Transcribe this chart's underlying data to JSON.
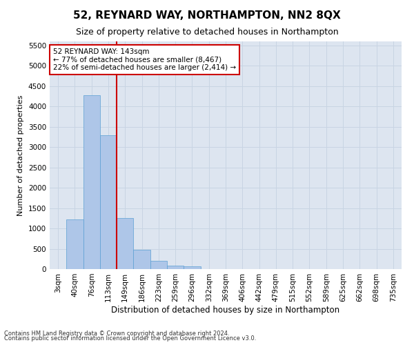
{
  "title": "52, REYNARD WAY, NORTHAMPTON, NN2 8QX",
  "subtitle": "Size of property relative to detached houses in Northampton",
  "xlabel": "Distribution of detached houses by size in Northampton",
  "ylabel": "Number of detached properties",
  "footnote1": "Contains HM Land Registry data © Crown copyright and database right 2024.",
  "footnote2": "Contains public sector information licensed under the Open Government Licence v3.0.",
  "categories": [
    "3sqm",
    "40sqm",
    "76sqm",
    "113sqm",
    "149sqm",
    "186sqm",
    "223sqm",
    "259sqm",
    "296sqm",
    "332sqm",
    "369sqm",
    "406sqm",
    "442sqm",
    "479sqm",
    "515sqm",
    "552sqm",
    "589sqm",
    "625sqm",
    "662sqm",
    "698sqm",
    "735sqm"
  ],
  "bar_values": [
    0,
    1230,
    4280,
    3300,
    1260,
    470,
    200,
    90,
    60,
    0,
    0,
    0,
    0,
    0,
    0,
    0,
    0,
    0,
    0,
    0,
    0
  ],
  "bar_color": "#aec6e8",
  "bar_edgecolor": "#5a9fd4",
  "vline_color": "#cc0000",
  "vline_bin_index": 3,
  "annotation_text": "52 REYNARD WAY: 143sqm\n← 77% of detached houses are smaller (8,467)\n22% of semi-detached houses are larger (2,414) →",
  "annotation_box_edgecolor": "#cc0000",
  "annotation_box_facecolor": "#ffffff",
  "ylim": [
    0,
    5600
  ],
  "yticks": [
    0,
    500,
    1000,
    1500,
    2000,
    2500,
    3000,
    3500,
    4000,
    4500,
    5000,
    5500
  ],
  "grid_color": "#c8d4e3",
  "background_color": "#dde5f0",
  "title_fontsize": 11,
  "subtitle_fontsize": 9,
  "xlabel_fontsize": 8.5,
  "ylabel_fontsize": 8,
  "tick_fontsize": 7.5,
  "annotation_fontsize": 7.5,
  "footnote_fontsize": 6
}
